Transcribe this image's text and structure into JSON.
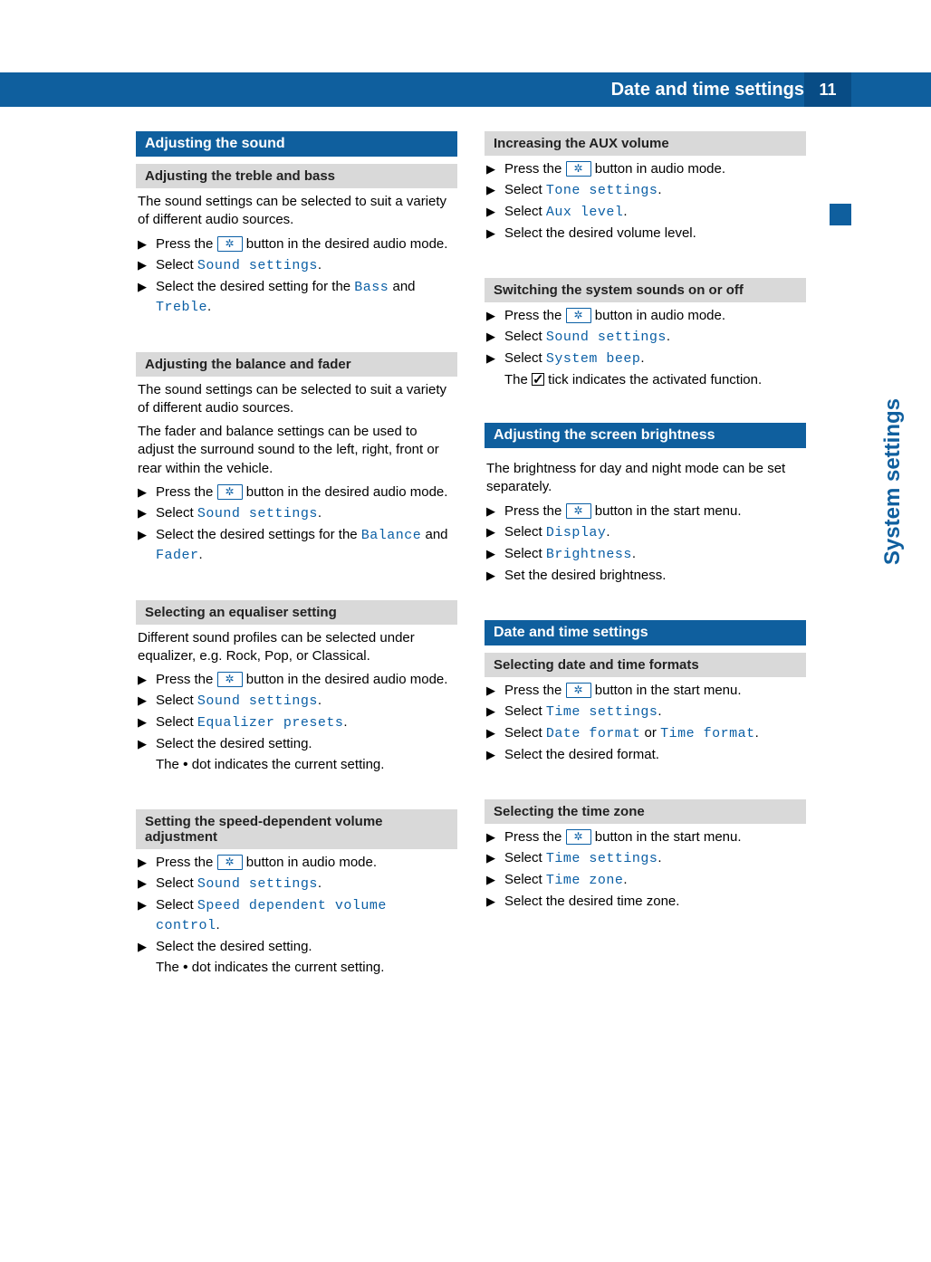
{
  "colors": {
    "primary": "#0f5f9e",
    "primary_dark": "#084c85",
    "grey_bg": "#d9d9d9",
    "mono": "#0b5fa5"
  },
  "header": {
    "title": "Date and time settings",
    "page_number": "11"
  },
  "side_label": "System settings",
  "left": {
    "h_sound": "Adjusting the sound",
    "h_treble": "Adjusting the treble and bass",
    "p_treble": "The sound settings can be selected to suit a variety of different audio sources.",
    "s_press_audio": "Press the ",
    "s_press_audio2": " button in the desired audio mode.",
    "s_select": "Select ",
    "m_sound_settings": "Sound settings",
    "s_desired_setting_for": "Select the desired setting for the ",
    "m_bass": "Bass",
    "m_and": " and ",
    "m_treble": "Treble",
    "h_balance": "Adjusting the balance and fader",
    "p_balance1": "The sound settings can be selected to suit a variety of different audio sources.",
    "p_balance2": "The fader and balance settings can be used to adjust the surround sound to the left, right, front or rear within the vehicle.",
    "s_desired_settings_for": "Select the desired settings for the ",
    "m_balance": "Balance",
    "m_fader": "Fader",
    "h_eq": "Selecting an equaliser setting",
    "p_eq": "Different sound profiles can be selected under equalizer, e.g. Rock, Pop, or Classical.",
    "m_eq_presets": "Equalizer presets",
    "s_sel_desired": "Select the desired setting.",
    "s_dot_current": "The ",
    "s_dot_current2": " dot indicates the current setting.",
    "h_speed": "Setting the speed-dependent volume adjustment",
    "s_press_audio_mode": "Press the ",
    "s_press_audio_mode2": " button in audio mode.",
    "m_speed_vol": "Speed dependent volume control"
  },
  "right": {
    "h_aux": "Increasing the AUX volume",
    "m_tone_settings": "Tone settings",
    "m_aux_level": "Aux level",
    "s_sel_vol": "Select the desired volume level.",
    "h_sys_sounds": "Switching the system sounds on or off",
    "m_system_beep": "System beep",
    "s_tick1": "The ",
    "s_tick2": " tick indicates the activated function.",
    "h_bright": "Adjusting the screen brightness",
    "p_bright": "The brightness for day and night mode can be set separately.",
    "s_press_start": "Press the ",
    "s_press_start2": " button in the start menu.",
    "m_display": "Display",
    "m_brightness": "Brightness",
    "s_set_bright": "Set the desired brightness.",
    "h_datetime": "Date and time settings",
    "h_formats": "Selecting date and time formats",
    "m_time_settings": "Time settings",
    "m_date_format": "Date format",
    "m_or": " or ",
    "m_time_format": "Time format",
    "s_sel_format": "Select the desired format.",
    "h_zone": "Selecting the time zone",
    "m_time_zone": "Time zone",
    "s_sel_zone": "Select the desired time zone."
  }
}
